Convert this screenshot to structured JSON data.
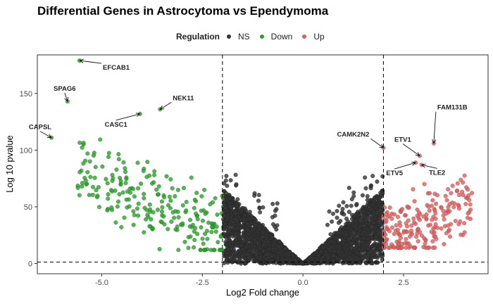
{
  "chart_data": {
    "type": "scatter",
    "title": "Differential Genes in Astrocytoma vs Ependymoma",
    "xlabel": "Log2 Fold change",
    "ylabel": "Log 10 pvalue",
    "xlim": [
      -6.6,
      4.6
    ],
    "ylim": [
      -9,
      184
    ],
    "xticks": [
      -5.0,
      -2.5,
      0.0,
      2.5
    ],
    "xtick_labels": [
      "-5.0",
      "-2.5",
      "0.0",
      "2.5"
    ],
    "yticks": [
      0,
      50,
      100,
      150
    ],
    "ytick_labels": [
      "0",
      "50",
      "100",
      "150"
    ],
    "grid": false,
    "legend": {
      "title": "Regulation",
      "position": "top",
      "entries": [
        {
          "label": "NS",
          "color": "#333333"
        },
        {
          "label": "Down",
          "color": "#2ca02c"
        },
        {
          "label": "Up",
          "color": "#d95f5f"
        }
      ]
    },
    "thresholds": {
      "log2fc": [
        -2,
        2
      ],
      "pvalue_line": 1.3
    },
    "series": [
      {
        "name": "NS",
        "color": "#333333",
        "note_points": "dense V-shaped cloud of ~10000 genes between -2 and 2"
      },
      {
        "name": "Down",
        "color": "#2ca02c"
      },
      {
        "name": "Up",
        "color": "#d95f5f"
      }
    ],
    "labeled_genes": [
      {
        "gene": "EFCAB1",
        "x": -5.55,
        "y": 179,
        "group": "Down"
      },
      {
        "gene": "SPAG6",
        "x": -5.85,
        "y": 143,
        "group": "Down"
      },
      {
        "gene": "CAPSL",
        "x": -6.25,
        "y": 111,
        "group": "Down"
      },
      {
        "gene": "CASC1",
        "x": -4.05,
        "y": 132,
        "group": "Down"
      },
      {
        "gene": "NEK11",
        "x": -3.55,
        "y": 136,
        "group": "Down"
      },
      {
        "gene": "CAMK2N2",
        "x": 2.0,
        "y": 102,
        "group": "Up"
      },
      {
        "gene": "ETV1",
        "x": 2.9,
        "y": 95,
        "group": "Up"
      },
      {
        "gene": "ETV5",
        "x": 2.8,
        "y": 89,
        "group": "Up"
      },
      {
        "gene": "TLE2",
        "x": 2.95,
        "y": 87,
        "group": "Up"
      },
      {
        "gene": "FAM131B",
        "x": 3.25,
        "y": 106,
        "group": "Up"
      }
    ]
  }
}
